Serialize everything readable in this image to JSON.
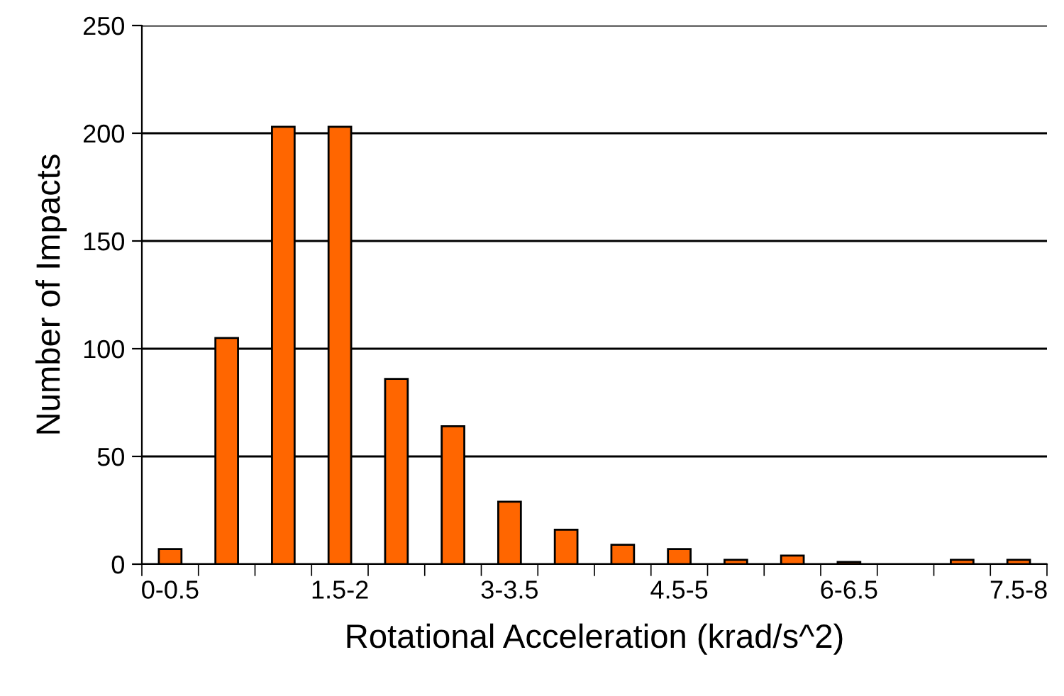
{
  "chart_data": {
    "type": "bar",
    "xlabel": "Rotational Acceleration (krad/s^2)",
    "ylabel": "Number of Impacts",
    "categories": [
      "0-0.5",
      null,
      null,
      "1.5-2",
      null,
      null,
      "3-3.5",
      null,
      null,
      "4.5-5",
      null,
      null,
      "6-6.5",
      null,
      null,
      "7.5-8"
    ],
    "values": [
      7,
      105,
      203,
      203,
      86,
      64,
      29,
      16,
      9,
      7,
      2,
      4,
      1,
      0,
      2,
      2
    ],
    "color": "#ff6600",
    "ylim": [
      0,
      250
    ],
    "yticks": [
      0,
      50,
      100,
      150,
      200,
      250
    ],
    "grid": "y",
    "legend": false
  }
}
